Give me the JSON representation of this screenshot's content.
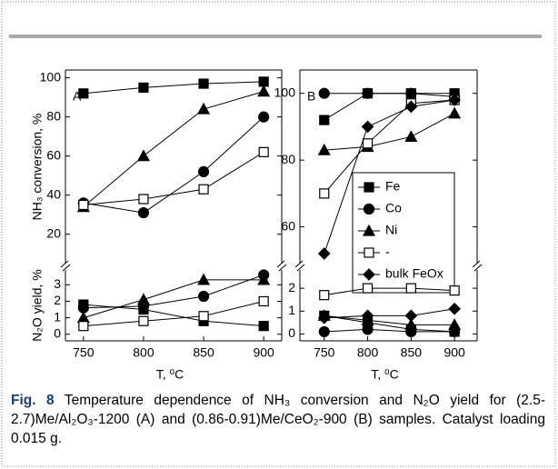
{
  "chart_data": [
    {
      "type": "line",
      "panel_label": "A",
      "ylabel": "NH₃ conversion, %",
      "x": [
        750,
        800,
        850,
        900
      ],
      "xlim": [
        735,
        915
      ],
      "ylim": [
        5,
        104
      ],
      "yticks": [
        20,
        40,
        60,
        80,
        100
      ],
      "series": [
        {
          "marker": "square",
          "filled": true,
          "color": "#000000",
          "values": [
            92,
            95,
            97,
            98
          ]
        },
        {
          "marker": "circle",
          "filled": true,
          "color": "#000000",
          "values": [
            36,
            31,
            52,
            80
          ]
        },
        {
          "marker": "triangle",
          "filled": true,
          "color": "#000000",
          "values": [
            34,
            60,
            84,
            93
          ]
        },
        {
          "marker": "square",
          "filled": false,
          "color": "#000000",
          "values": [
            35,
            38,
            43,
            62
          ]
        }
      ]
    },
    {
      "type": "line",
      "ylabel": "N₂O yield, %",
      "xlabel": "T, ⁰C",
      "x": [
        750,
        800,
        850,
        900
      ],
      "xlim": [
        735,
        915
      ],
      "xticks": [
        750,
        800,
        850,
        900
      ],
      "ylim": [
        -0.4,
        3.9
      ],
      "yticks": [
        0,
        1,
        2,
        3
      ],
      "series": [
        {
          "marker": "square",
          "filled": true,
          "color": "#000000",
          "values": [
            1.8,
            1.5,
            0.8,
            0.5
          ]
        },
        {
          "marker": "circle",
          "filled": true,
          "color": "#000000",
          "values": [
            1.6,
            1.7,
            2.3,
            3.6
          ]
        },
        {
          "marker": "triangle",
          "filled": true,
          "color": "#000000",
          "values": [
            1.0,
            2.1,
            3.3,
            3.3
          ]
        },
        {
          "marker": "square",
          "filled": false,
          "color": "#000000",
          "values": [
            0.5,
            0.8,
            1.1,
            2.0
          ]
        }
      ]
    },
    {
      "type": "line",
      "panel_label": "B",
      "legend": "center-right",
      "x": [
        750,
        800,
        850,
        900
      ],
      "xlim": [
        722,
        926
      ],
      "ylim": [
        49,
        107
      ],
      "yticks": [
        60,
        80,
        100
      ],
      "series": [
        {
          "name": "Fe",
          "marker": "square",
          "filled": true,
          "color": "#000000",
          "values": [
            92,
            100,
            100,
            100
          ]
        },
        {
          "name": "Co",
          "marker": "circle",
          "filled": true,
          "color": "#000000",
          "values": [
            100,
            100,
            100,
            99
          ]
        },
        {
          "name": "Ni",
          "marker": "triangle",
          "filled": true,
          "color": "#000000",
          "values": [
            83,
            84,
            87,
            94
          ]
        },
        {
          "name": "-",
          "marker": "square",
          "filled": false,
          "color": "#000000",
          "values": [
            70,
            85,
            97,
            98
          ]
        },
        {
          "name": "bulk FeOx",
          "marker": "diamond",
          "filled": true,
          "color": "#000000",
          "values": [
            52,
            90,
            96,
            98
          ]
        }
      ]
    },
    {
      "type": "line",
      "xlabel": "T, ⁰C",
      "x": [
        750,
        800,
        850,
        900
      ],
      "xlim": [
        722,
        926
      ],
      "xticks": [
        750,
        800,
        850,
        900
      ],
      "ylim": [
        -0.3,
        2.8
      ],
      "yticks": [
        0,
        1,
        2
      ],
      "series": [
        {
          "marker": "square",
          "filled": true,
          "color": "#000000",
          "values": [
            0.8,
            0.5,
            0.2,
            0.1
          ]
        },
        {
          "marker": "circle",
          "filled": true,
          "color": "#000000",
          "values": [
            0.1,
            0.2,
            0.1,
            0.1
          ]
        },
        {
          "marker": "triangle",
          "filled": true,
          "color": "#000000",
          "values": [
            0.8,
            0.6,
            0.4,
            0.4
          ]
        },
        {
          "marker": "square",
          "filled": false,
          "color": "#000000",
          "values": [
            1.7,
            2.0,
            2.0,
            1.9
          ]
        },
        {
          "marker": "diamond",
          "filled": true,
          "color": "#000000",
          "values": [
            0.7,
            0.8,
            0.8,
            1.1
          ]
        }
      ]
    }
  ],
  "caption": {
    "label": "Fig. 8",
    "text": "Temperature dependence of NH₃ conversion and N₂O yield for (2.5-2.7)Me/Al₂O₃-1200 (A) and (0.86-0.91)Me/CeO₂-900 (B) samples. Catalyst loading 0.015 g."
  }
}
